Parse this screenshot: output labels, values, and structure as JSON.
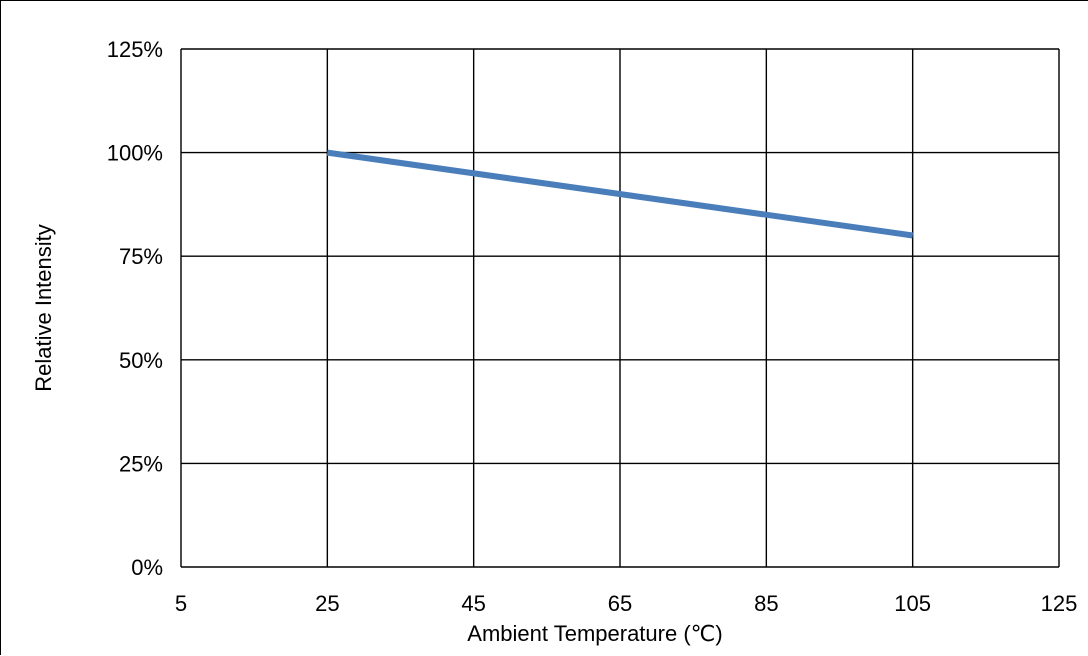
{
  "chart_data": {
    "type": "line",
    "title": "",
    "xlabel": "Ambient Temperature (℃)",
    "ylabel": "Relative Intensity",
    "xlim": [
      5,
      125
    ],
    "ylim": [
      0,
      125
    ],
    "x_ticks": [
      5,
      25,
      45,
      65,
      85,
      105,
      125
    ],
    "x_tick_labels": [
      "5",
      "25",
      "45",
      "65",
      "85",
      "105",
      "125"
    ],
    "y_ticks": [
      0,
      25,
      50,
      75,
      100,
      125
    ],
    "y_tick_labels": [
      "0%",
      "25%",
      "50%",
      "75%",
      "100%",
      "125%"
    ],
    "grid": true,
    "legend": "none",
    "series": [
      {
        "color": "#4a7ebb",
        "x": [
          25,
          105
        ],
        "y": [
          100,
          80
        ]
      }
    ]
  }
}
